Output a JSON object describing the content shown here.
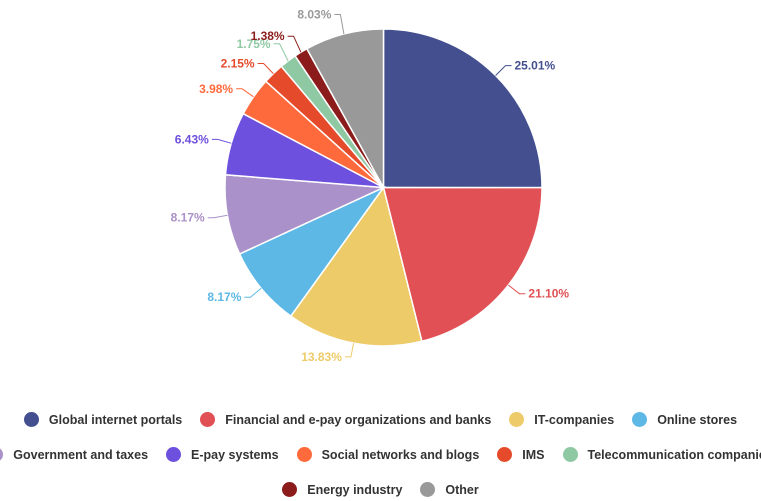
{
  "chart_data": {
    "type": "pie",
    "title": "",
    "legend_position": "bottom",
    "slices": [
      {
        "label": "Global internet portals",
        "value": 25.01,
        "display": "25.01%",
        "color": "#434f8f"
      },
      {
        "label": "Financial and e-pay organizations and banks",
        "value": 21.1,
        "display": "21.10%",
        "color": "#e05054"
      },
      {
        "label": "IT-companies",
        "value": 13.83,
        "display": "13.83%",
        "color": "#eecb69"
      },
      {
        "label": "Online stores",
        "value": 8.17,
        "display": "8.17%",
        "color": "#5db8e6"
      },
      {
        "label": "Government and taxes",
        "value": 8.17,
        "display": "8.17%",
        "color": "#ab91c9"
      },
      {
        "label": "E-pay systems",
        "value": 6.43,
        "display": "6.43%",
        "color": "#6d50dd"
      },
      {
        "label": "Social networks and blogs",
        "value": 3.98,
        "display": "3.98%",
        "color": "#ff6a3d"
      },
      {
        "label": "IMS",
        "value": 2.15,
        "display": "2.15%",
        "color": "#e54b2b"
      },
      {
        "label": "Telecommunication companies",
        "value": 1.75,
        "display": "1.75%",
        "color": "#8fc9a4"
      },
      {
        "label": "Energy industry",
        "value": 1.38,
        "display": "1.38%",
        "color": "#8c1c1c"
      },
      {
        "label": "Other",
        "value": 8.03,
        "display": "8.03%",
        "color": "#999999"
      }
    ]
  }
}
